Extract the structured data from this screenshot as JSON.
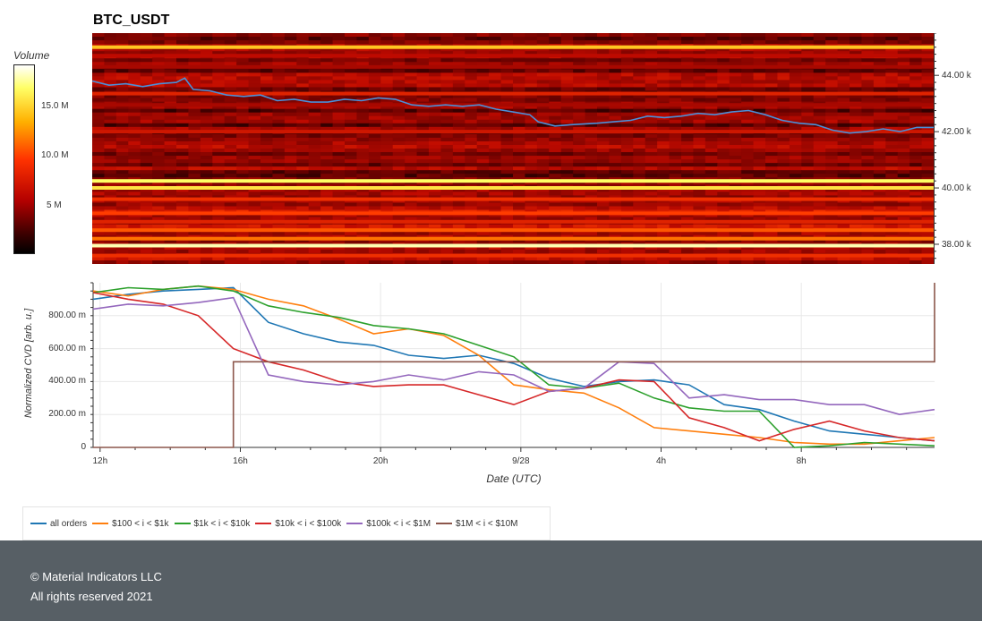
{
  "chart_data": [
    {
      "type": "heatmap",
      "title": "BTC_USDT",
      "colorbar": {
        "title": "Volume",
        "ticks": [
          "15.0 M",
          "10.0 M",
          "5 M"
        ],
        "tick_values": [
          15000000,
          10000000,
          5000000
        ],
        "max": 19000000
      },
      "y_ticks": [
        "44.00 k",
        "42.00 k",
        "40.00 k",
        "38.00 k"
      ],
      "y_tick_values": [
        44000,
        42000,
        40000,
        38000
      ],
      "ylim": [
        37300,
        45500
      ],
      "xlim": [
        0,
        1
      ],
      "price_line": {
        "x": [
          0,
          0.02,
          0.04,
          0.06,
          0.08,
          0.1,
          0.11,
          0.12,
          0.14,
          0.16,
          0.18,
          0.2,
          0.22,
          0.24,
          0.26,
          0.28,
          0.3,
          0.32,
          0.34,
          0.36,
          0.38,
          0.4,
          0.42,
          0.44,
          0.46,
          0.48,
          0.5,
          0.52,
          0.53,
          0.55,
          0.57,
          0.6,
          0.62,
          0.64,
          0.66,
          0.68,
          0.7,
          0.72,
          0.74,
          0.76,
          0.78,
          0.8,
          0.82,
          0.84,
          0.86,
          0.88,
          0.9,
          0.92,
          0.94,
          0.96,
          0.98,
          1.0
        ],
        "y": [
          43800,
          43650,
          43700,
          43600,
          43700,
          43750,
          43900,
          43500,
          43450,
          43300,
          43250,
          43300,
          43100,
          43150,
          43050,
          43050,
          43150,
          43100,
          43200,
          43150,
          42950,
          42900,
          42950,
          42900,
          42950,
          42800,
          42700,
          42600,
          42350,
          42200,
          42250,
          42300,
          42350,
          42400,
          42550,
          42500,
          42550,
          42650,
          42600,
          42700,
          42750,
          42600,
          42400,
          42300,
          42250,
          42050,
          41950,
          42000,
          42100,
          42000,
          42150,
          42150
        ]
      },
      "bands": [
        {
          "price": 45000,
          "level": 0.8
        },
        {
          "price": 44700,
          "level": 0.35
        },
        {
          "price": 44300,
          "level": 0.3
        },
        {
          "price": 43350,
          "level": 0.45
        },
        {
          "price": 42950,
          "level": 0.3
        },
        {
          "price": 42000,
          "level": 0.4
        },
        {
          "price": 40250,
          "level": 0.9
        },
        {
          "price": 40000,
          "level": 0.85
        },
        {
          "price": 39600,
          "level": 0.5
        },
        {
          "price": 39100,
          "level": 0.55
        },
        {
          "price": 38800,
          "level": 0.45
        },
        {
          "price": 38500,
          "level": 0.6
        },
        {
          "price": 38200,
          "level": 0.65
        },
        {
          "price": 37950,
          "level": 0.95
        },
        {
          "price": 37600,
          "level": 0.5
        }
      ]
    },
    {
      "type": "line",
      "ylabel": "Normalized CVD [arb. u.]",
      "xlabel": "Date (UTC)",
      "x_ticks": [
        "12h",
        "16h",
        "20h",
        "9/28",
        "4h",
        "8h"
      ],
      "x_tick_values": [
        0.2,
        4.2,
        8.2,
        12.2,
        16.2,
        20.2
      ],
      "xlim": [
        0,
        24
      ],
      "y_ticks": [
        "0",
        "200.00 m",
        "400.00 m",
        "600.00 m",
        "800.00 m"
      ],
      "y_tick_values": [
        0,
        200,
        400,
        600,
        800
      ],
      "ylim": [
        0,
        1000
      ],
      "grid": true,
      "x": [
        0,
        1,
        2,
        3,
        4,
        5,
        6,
        7,
        8,
        9,
        10,
        11,
        12,
        13,
        14,
        15,
        16,
        17,
        18,
        19,
        20,
        21,
        22,
        23,
        24
      ],
      "series": [
        {
          "name": "all orders",
          "color": "#1f77b4",
          "values": [
            900,
            930,
            950,
            960,
            970,
            760,
            690,
            640,
            620,
            560,
            540,
            560,
            510,
            420,
            370,
            400,
            410,
            380,
            260,
            230,
            160,
            100,
            80,
            60,
            40
          ]
        },
        {
          "name": "$100 < i < $1k",
          "color": "#ff7f0e",
          "values": [
            950,
            920,
            960,
            980,
            960,
            900,
            860,
            780,
            690,
            720,
            680,
            560,
            380,
            350,
            330,
            240,
            120,
            100,
            80,
            60,
            30,
            20,
            20,
            40,
            60
          ]
        },
        {
          "name": "$1k < i < $10k",
          "color": "#2ca02c",
          "values": [
            940,
            970,
            960,
            980,
            950,
            860,
            820,
            790,
            740,
            720,
            690,
            620,
            550,
            380,
            360,
            390,
            300,
            240,
            220,
            220,
            0,
            10,
            30,
            20,
            10
          ]
        },
        {
          "name": "$10k < i < $100k",
          "color": "#d62728",
          "values": [
            940,
            900,
            870,
            800,
            600,
            520,
            470,
            400,
            370,
            380,
            380,
            320,
            260,
            340,
            360,
            410,
            400,
            180,
            120,
            40,
            110,
            160,
            100,
            60,
            40
          ]
        },
        {
          "name": "$100k < i < $1M",
          "color": "#9467bd",
          "values": [
            840,
            870,
            860,
            880,
            910,
            440,
            400,
            380,
            400,
            440,
            410,
            460,
            440,
            340,
            360,
            520,
            510,
            300,
            320,
            290,
            290,
            260,
            260,
            200,
            230
          ]
        },
        {
          "name": "$1M < i < $10M",
          "color": "#8c564b",
          "values": [
            0,
            0,
            0,
            0,
            520,
            520,
            520,
            520,
            520,
            520,
            520,
            520,
            520,
            520,
            520,
            520,
            520,
            520,
            520,
            520,
            520,
            520,
            520,
            520,
            1000
          ]
        }
      ]
    }
  ],
  "legend": {
    "items": [
      "all orders",
      "$100 < i < $1k",
      "$1k < i < $10k",
      "$10k < i < $100k",
      "$100k < i < $1M",
      "$1M < i < $10M"
    ]
  },
  "footer": {
    "line1": "© Material Indicators LLC",
    "line2": "All rights reserved 2021"
  }
}
